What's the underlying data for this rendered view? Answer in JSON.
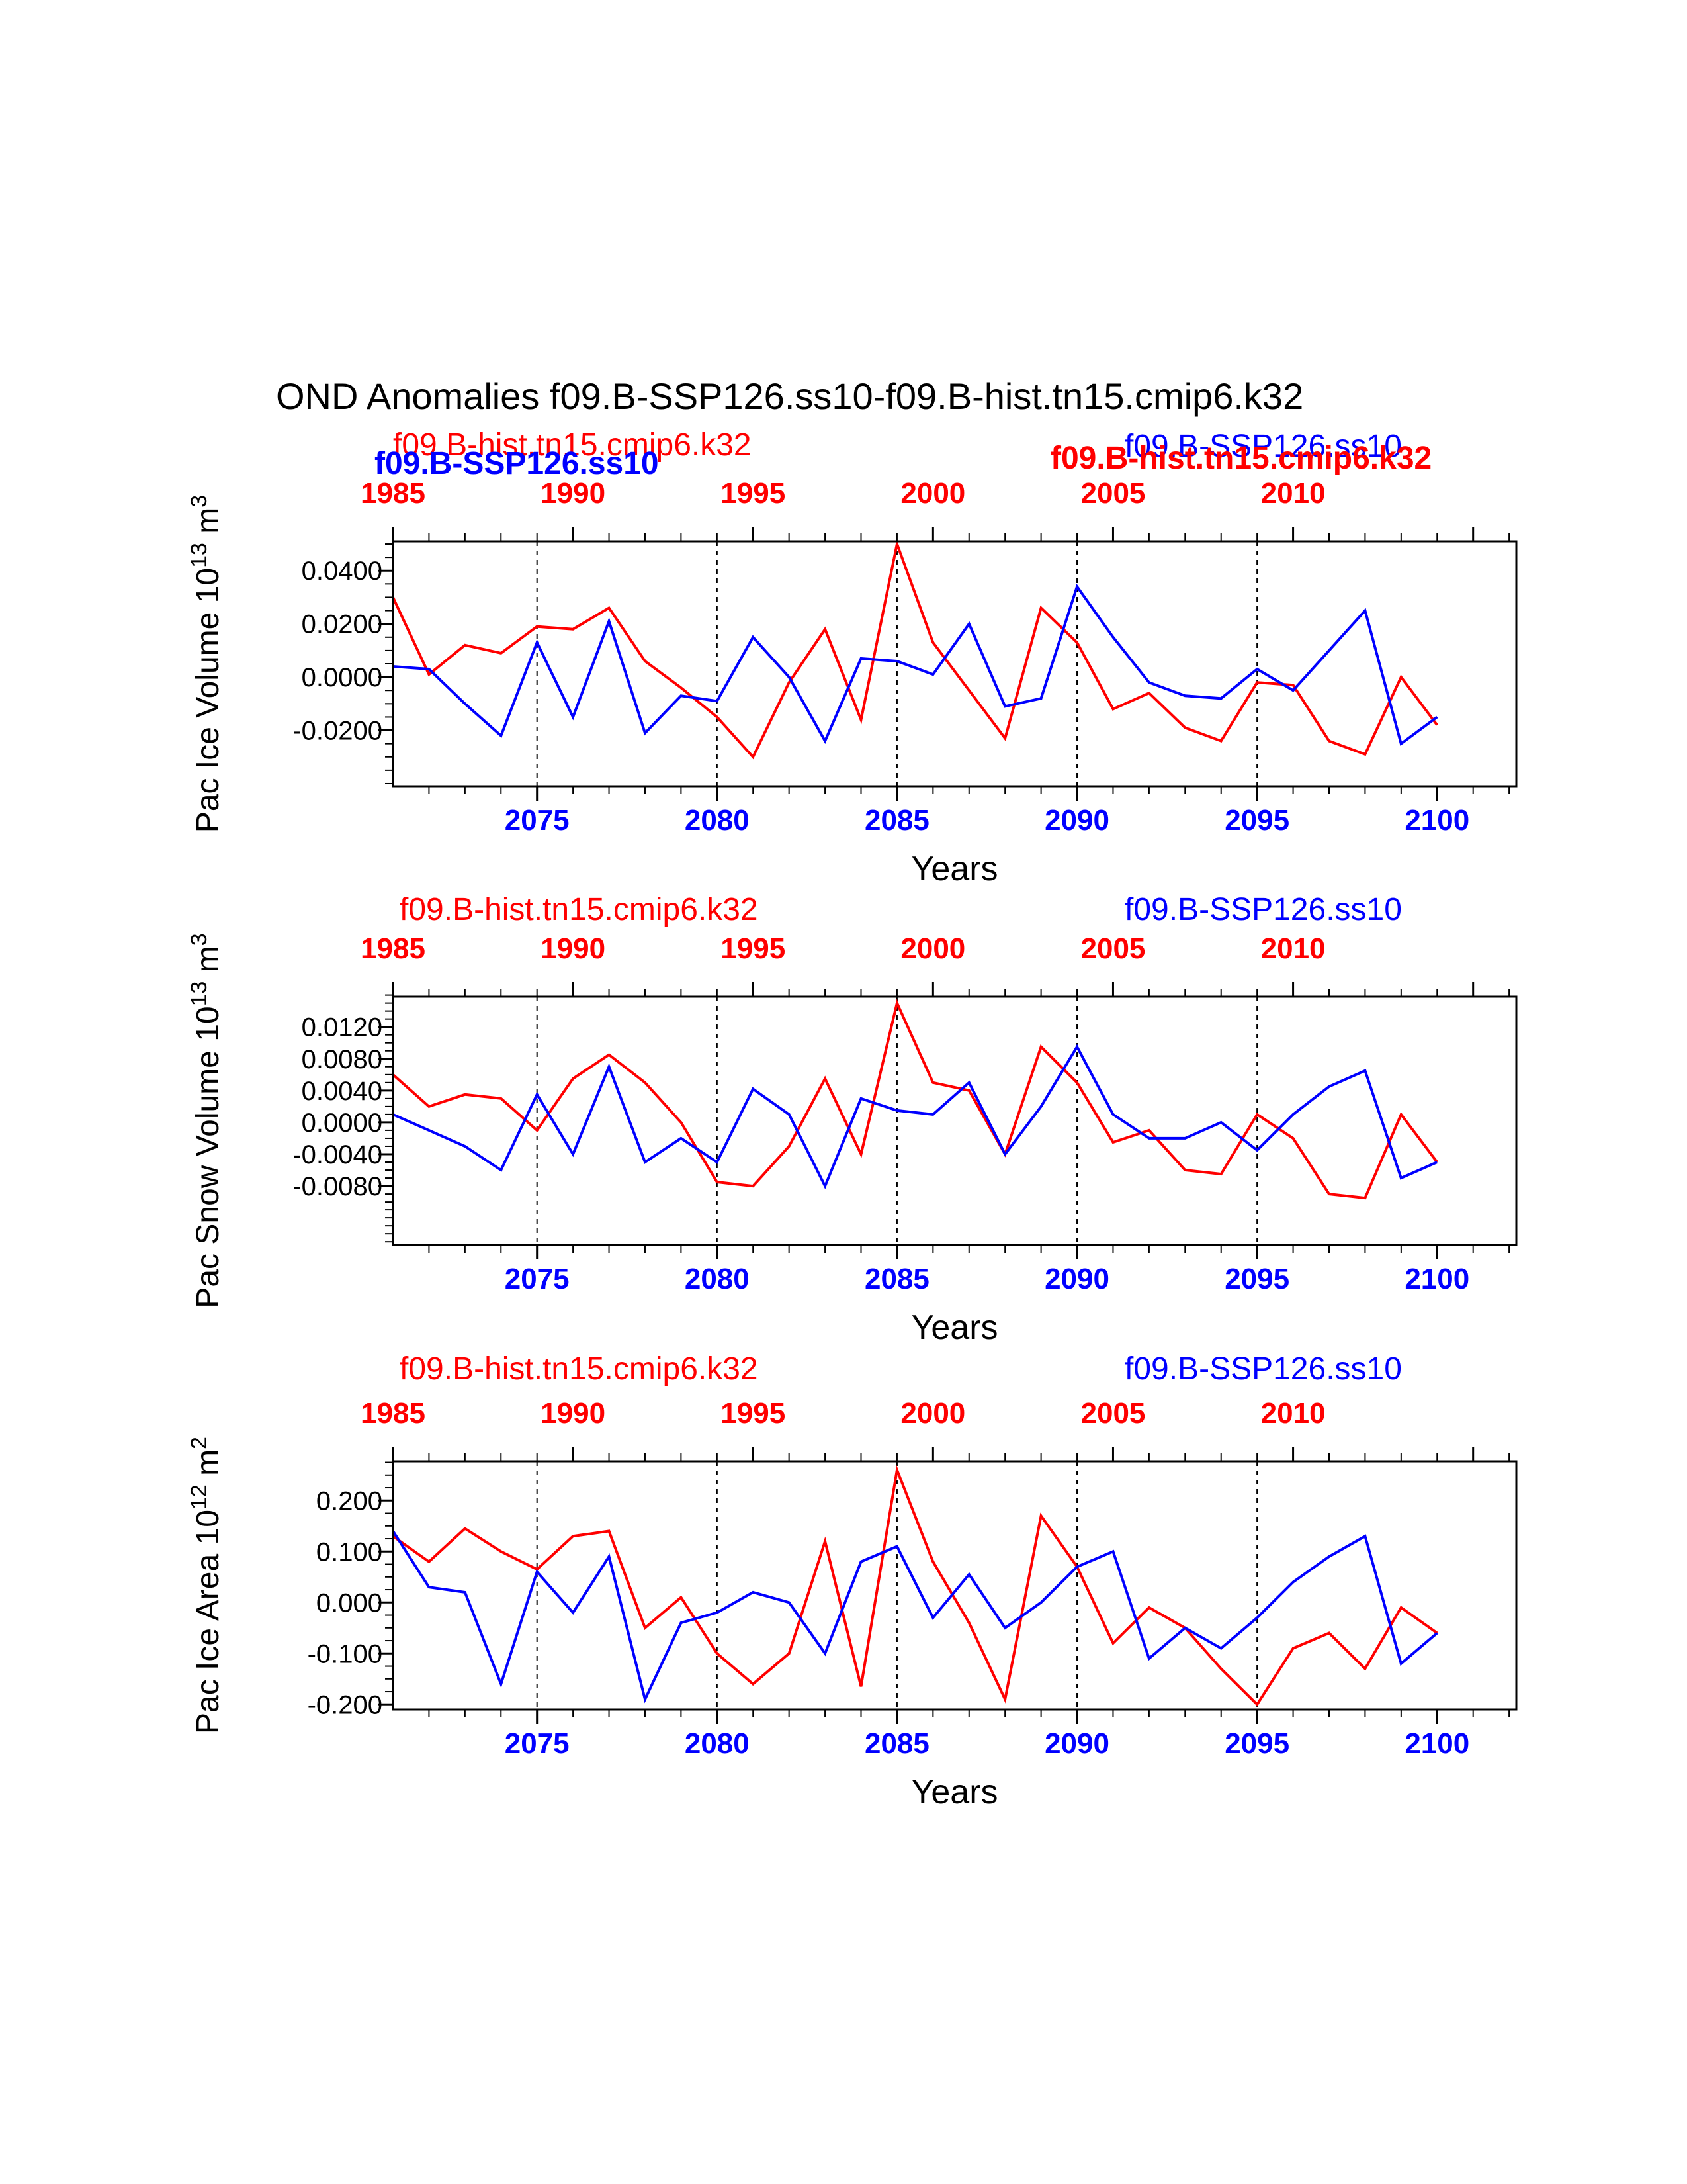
{
  "title": "OND Anomalies f09.B-SSP126.ss10-f09.B-hist.tn15.cmip6.k32",
  "colors": {
    "red": "#ff0000",
    "blue": "#0000ff",
    "black": "#000000",
    "background": "#ffffff"
  },
  "chart_data": [
    {
      "name": "pac-ice-volume",
      "type": "line",
      "xlabel": "Years",
      "ylabel": {
        "prefix": "Pac Ice Volume 10",
        "sup1": "13",
        "mid": " m",
        "sup2": "3"
      },
      "xlim": [
        2071,
        2102.2
      ],
      "ylim": [
        -0.041,
        0.051
      ],
      "yticks": [
        0.04,
        0.02,
        0.0,
        -0.02
      ],
      "ytick_labels": [
        "0.0400",
        "0.0200",
        "0.0000",
        "-0.0200"
      ],
      "yminor": 0.005,
      "bottom_ticks": [
        2075,
        2080,
        2085,
        2090,
        2095,
        2100
      ],
      "top_ticks": [
        1985,
        1990,
        1995,
        2000,
        2005,
        2010
      ],
      "top_year_offset": 86,
      "dashed_lines": [
        2075,
        2080,
        2085,
        2090,
        2095
      ],
      "legends": [
        {
          "text": "f09.B-hist.tn15.cmip6.k32",
          "color": "red",
          "bold": false,
          "x": 594,
          "y": 688
        },
        {
          "text": "f09.B-SSP126.ss10",
          "color": "blue",
          "bold": true,
          "x": 566,
          "y": 716
        },
        {
          "text": "f09.B-SSP126.ss10",
          "color": "blue",
          "bold": false,
          "x": 1700,
          "y": 690
        },
        {
          "text": "f09.B-hist.tn15.cmip6.k32",
          "color": "red",
          "bold": true,
          "x": 1588,
          "y": 708
        }
      ],
      "series": [
        {
          "name": "f09.B-hist.tn15.cmip6.k32",
          "color": "red",
          "start_year": 1985,
          "plot_offset": 86,
          "values": [
            0.03,
            0.001,
            0.012,
            0.009,
            0.019,
            0.018,
            0.026,
            0.006,
            -0.004,
            -0.015,
            -0.03,
            -0.002,
            0.018,
            -0.016,
            0.05,
            0.013,
            -0.005,
            -0.023,
            0.026,
            0.013,
            -0.012,
            -0.006,
            -0.019,
            -0.024,
            -0.002,
            -0.003,
            -0.024,
            -0.029,
            0.0,
            -0.018
          ]
        },
        {
          "name": "f09.B-SSP126.ss10",
          "color": "blue",
          "start_year": 2071,
          "plot_offset": 0,
          "values": [
            0.004,
            0.003,
            -0.01,
            -0.022,
            0.013,
            -0.015,
            0.021,
            -0.021,
            -0.007,
            -0.009,
            0.015,
            0.0,
            -0.024,
            0.007,
            0.006,
            0.001,
            0.02,
            -0.011,
            -0.008,
            0.034,
            0.015,
            -0.002,
            -0.007,
            -0.008,
            0.003,
            -0.005,
            0.01,
            0.025,
            -0.025,
            -0.015
          ]
        }
      ]
    },
    {
      "name": "pac-snow-volume",
      "type": "line",
      "xlabel": "Years",
      "ylabel": {
        "prefix": "Pac Snow Volume 10",
        "sup1": "13",
        "mid": " m",
        "sup2": "3"
      },
      "xlim": [
        2071,
        2102.2
      ],
      "ylim": [
        -0.0154,
        0.0158
      ],
      "yticks": [
        0.012,
        0.008,
        0.004,
        0.0,
        -0.004,
        -0.008
      ],
      "ytick_labels": [
        "0.0120",
        "0.0080",
        "0.0040",
        "0.0000",
        "-0.0040",
        "-0.0080"
      ],
      "yminor": 0.001,
      "bottom_ticks": [
        2075,
        2080,
        2085,
        2090,
        2095,
        2100
      ],
      "top_ticks": [
        1985,
        1990,
        1995,
        2000,
        2005,
        2010
      ],
      "top_year_offset": 86,
      "dashed_lines": [
        2075,
        2080,
        2085,
        2090,
        2095
      ],
      "legends": [
        {
          "text": "f09.B-hist.tn15.cmip6.k32",
          "color": "red",
          "bold": false,
          "x": 604,
          "y": 1390
        },
        {
          "text": "f09.B-SSP126.ss10",
          "color": "blue",
          "bold": false,
          "x": 1700,
          "y": 1390
        }
      ],
      "series": [
        {
          "name": "f09.B-hist.tn15.cmip6.k32",
          "color": "red",
          "start_year": 1985,
          "plot_offset": 86,
          "values": [
            0.006,
            0.002,
            0.0035,
            0.003,
            -0.001,
            0.0055,
            0.0085,
            0.005,
            0.0,
            -0.0075,
            -0.008,
            -0.003,
            0.0055,
            -0.004,
            0.015,
            0.005,
            0.004,
            -0.004,
            0.0095,
            0.005,
            -0.0025,
            -0.001,
            -0.006,
            -0.0065,
            0.001,
            -0.002,
            -0.009,
            -0.0095,
            0.001,
            -0.005
          ]
        },
        {
          "name": "f09.B-SSP126.ss10",
          "color": "blue",
          "start_year": 2071,
          "plot_offset": 0,
          "values": [
            0.001,
            -0.001,
            -0.003,
            -0.006,
            0.0035,
            -0.004,
            0.007,
            -0.005,
            -0.002,
            -0.005,
            0.0042,
            0.001,
            -0.008,
            0.003,
            0.0015,
            0.001,
            0.005,
            -0.004,
            0.002,
            0.0095,
            0.001,
            -0.002,
            -0.002,
            0.0,
            -0.0035,
            0.001,
            0.0045,
            0.0065,
            -0.007,
            -0.005
          ]
        }
      ]
    },
    {
      "name": "pac-ice-area",
      "type": "line",
      "xlabel": "Years",
      "ylabel": {
        "prefix": "Pac Ice Area 10",
        "sup1": "12",
        "mid": " m",
        "sup2": "2"
      },
      "xlim": [
        2071,
        2102.2
      ],
      "ylim": [
        -0.21,
        0.277
      ],
      "yticks": [
        0.2,
        0.1,
        0.0,
        -0.1,
        -0.2
      ],
      "ytick_labels": [
        "0.200",
        "0.100",
        "0.000",
        "-0.100",
        "-0.200"
      ],
      "yminor": 0.025,
      "bottom_ticks": [
        2075,
        2080,
        2085,
        2090,
        2095,
        2100
      ],
      "top_ticks": [
        1985,
        1990,
        1995,
        2000,
        2005,
        2010
      ],
      "top_year_offset": 86,
      "dashed_lines": [
        2075,
        2080,
        2085,
        2090,
        2095
      ],
      "legends": [
        {
          "text": "f09.B-hist.tn15.cmip6.k32",
          "color": "red",
          "bold": false,
          "x": 604,
          "y": 2084
        },
        {
          "text": "f09.B-SSP126.ss10",
          "color": "blue",
          "bold": false,
          "x": 1700,
          "y": 2084
        }
      ],
      "series": [
        {
          "name": "f09.B-hist.tn15.cmip6.k32",
          "color": "red",
          "start_year": 1985,
          "plot_offset": 86,
          "values": [
            0.13,
            0.08,
            0.145,
            0.1,
            0.065,
            0.13,
            0.14,
            -0.05,
            0.01,
            -0.1,
            -0.16,
            -0.1,
            0.12,
            -0.165,
            0.26,
            0.08,
            -0.04,
            -0.19,
            0.17,
            0.07,
            -0.08,
            -0.01,
            -0.05,
            -0.13,
            -0.2,
            -0.09,
            -0.06,
            -0.13,
            -0.01,
            -0.06
          ]
        },
        {
          "name": "f09.B-SSP126.ss10",
          "color": "blue",
          "start_year": 2071,
          "plot_offset": 0,
          "values": [
            0.14,
            0.03,
            0.02,
            -0.16,
            0.06,
            -0.02,
            0.09,
            -0.19,
            -0.04,
            -0.02,
            0.02,
            0.0,
            -0.1,
            0.08,
            0.11,
            -0.03,
            0.055,
            -0.05,
            0.0,
            0.07,
            0.1,
            -0.11,
            -0.05,
            -0.09,
            -0.03,
            0.04,
            0.09,
            0.13,
            -0.12,
            -0.06
          ]
        }
      ]
    }
  ]
}
